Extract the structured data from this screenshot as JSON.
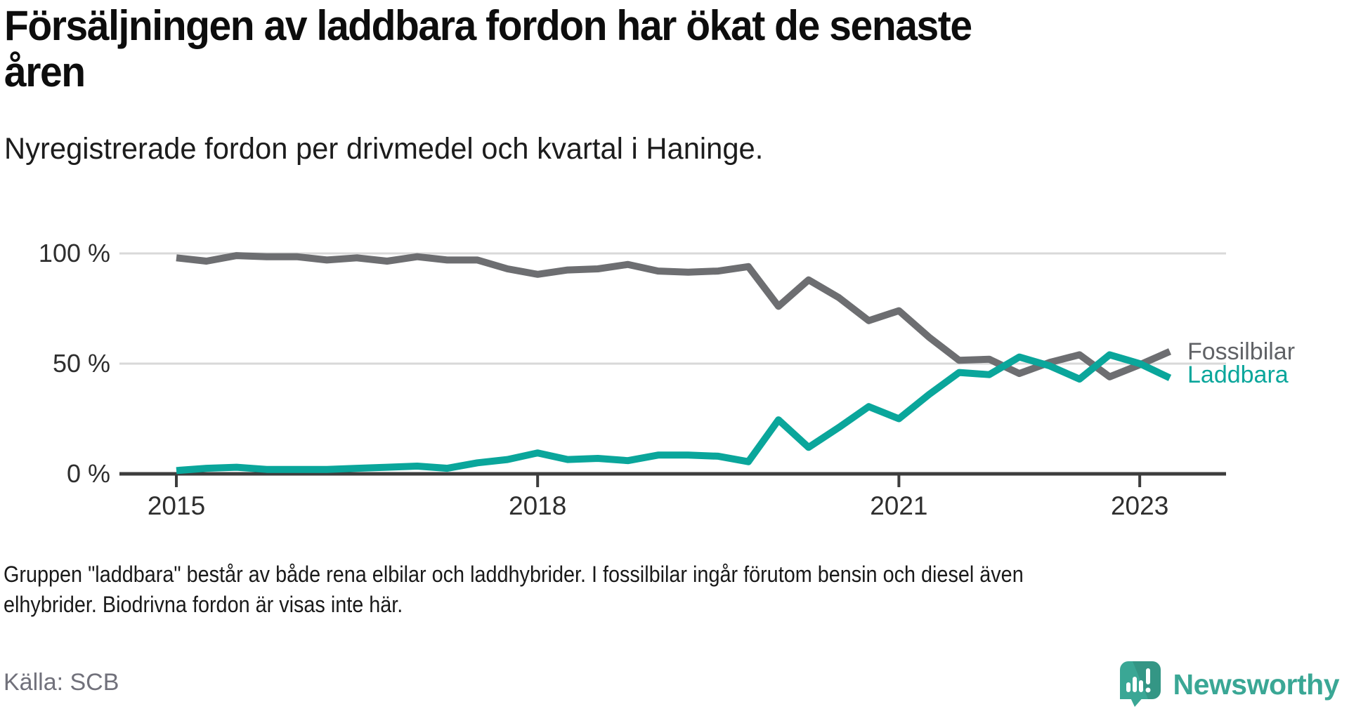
{
  "header": {
    "title_line1": "Försäljningen av laddbara fordon har ökat de senaste",
    "title_line2": "åren",
    "subtitle": "Nyregistrerade fordon per drivmedel och kvartal i Haninge."
  },
  "chart_data": {
    "type": "line",
    "title": "Försäljningen av laddbara fordon har ökat de senaste åren",
    "subtitle": "Nyregistrerade fordon per drivmedel och kvartal i Haninge.",
    "xlabel": "",
    "ylabel": "",
    "ylim": [
      0,
      100
    ],
    "grid": true,
    "legend_position": "right-end-of-line",
    "quarters": [
      "2015-Q1",
      "2015-Q2",
      "2015-Q3",
      "2015-Q4",
      "2016-Q1",
      "2016-Q2",
      "2016-Q3",
      "2016-Q4",
      "2017-Q1",
      "2017-Q2",
      "2017-Q3",
      "2017-Q4",
      "2018-Q1",
      "2018-Q2",
      "2018-Q3",
      "2018-Q4",
      "2019-Q1",
      "2019-Q2",
      "2019-Q3",
      "2019-Q4",
      "2020-Q1",
      "2020-Q2",
      "2020-Q3",
      "2020-Q4",
      "2021-Q1",
      "2021-Q2",
      "2021-Q3",
      "2021-Q4",
      "2022-Q1",
      "2022-Q2",
      "2022-Q3",
      "2022-Q4",
      "2023-Q1",
      "2023-Q2"
    ],
    "series": [
      {
        "id": "fossilbilar",
        "name": "Fossilbilar",
        "color": "#6d6e71",
        "unit": "%",
        "values": [
          98,
          96.5,
          99,
          98.5,
          98.5,
          97,
          98,
          96.5,
          98.5,
          97,
          97,
          93,
          90.5,
          92.5,
          93,
          95,
          92,
          91.5,
          92,
          94,
          76,
          88,
          80,
          69.5,
          74,
          62,
          51.5,
          52,
          45.5,
          50.5,
          54,
          44,
          49.5,
          55.5
        ]
      },
      {
        "id": "laddbara",
        "name": "Laddbara",
        "color": "#0aa69b",
        "unit": "%",
        "values": [
          1.5,
          2.5,
          3,
          2,
          2,
          2,
          2.5,
          3,
          3.5,
          2.5,
          5,
          6.5,
          9.5,
          6.5,
          7,
          6,
          8.5,
          8.5,
          8,
          5.5,
          24.5,
          12,
          21,
          30.5,
          25,
          36,
          46,
          45,
          53,
          49,
          43,
          54,
          50,
          43.5
        ]
      }
    ],
    "y_ticks": [
      {
        "label": "100 %",
        "value": 100
      },
      {
        "label": "50 %",
        "value": 50
      },
      {
        "label": "0 %",
        "value": 0
      }
    ],
    "x_ticks": [
      {
        "label": "2015",
        "quarter_index": 0
      },
      {
        "label": "2018",
        "quarter_index": 12
      },
      {
        "label": "2021",
        "quarter_index": 24
      },
      {
        "label": "2023",
        "quarter_index": 32
      }
    ],
    "colors": {
      "gridline": "#d9d9d9",
      "axis": "#3d3d3d",
      "fossil_line": "#6d6e71",
      "laddbara_line": "#0aa69b",
      "fossil_label": "#606266",
      "laddbara_label": "#0aa69b"
    }
  },
  "series_labels": {
    "fossil": "Fossilbilar",
    "laddbara": "Laddbara"
  },
  "footnote": {
    "line1": "Gruppen \"laddbara\" består av både rena elbilar och laddhybrider. I fossilbilar ingår förutom bensin och diesel även",
    "line2": "elhybrider. Biodrivna fordon är visas inte här."
  },
  "footer": {
    "source": "Källa: SCB",
    "brand_name": "Newsworthy",
    "brand_color": "#3aa795"
  }
}
